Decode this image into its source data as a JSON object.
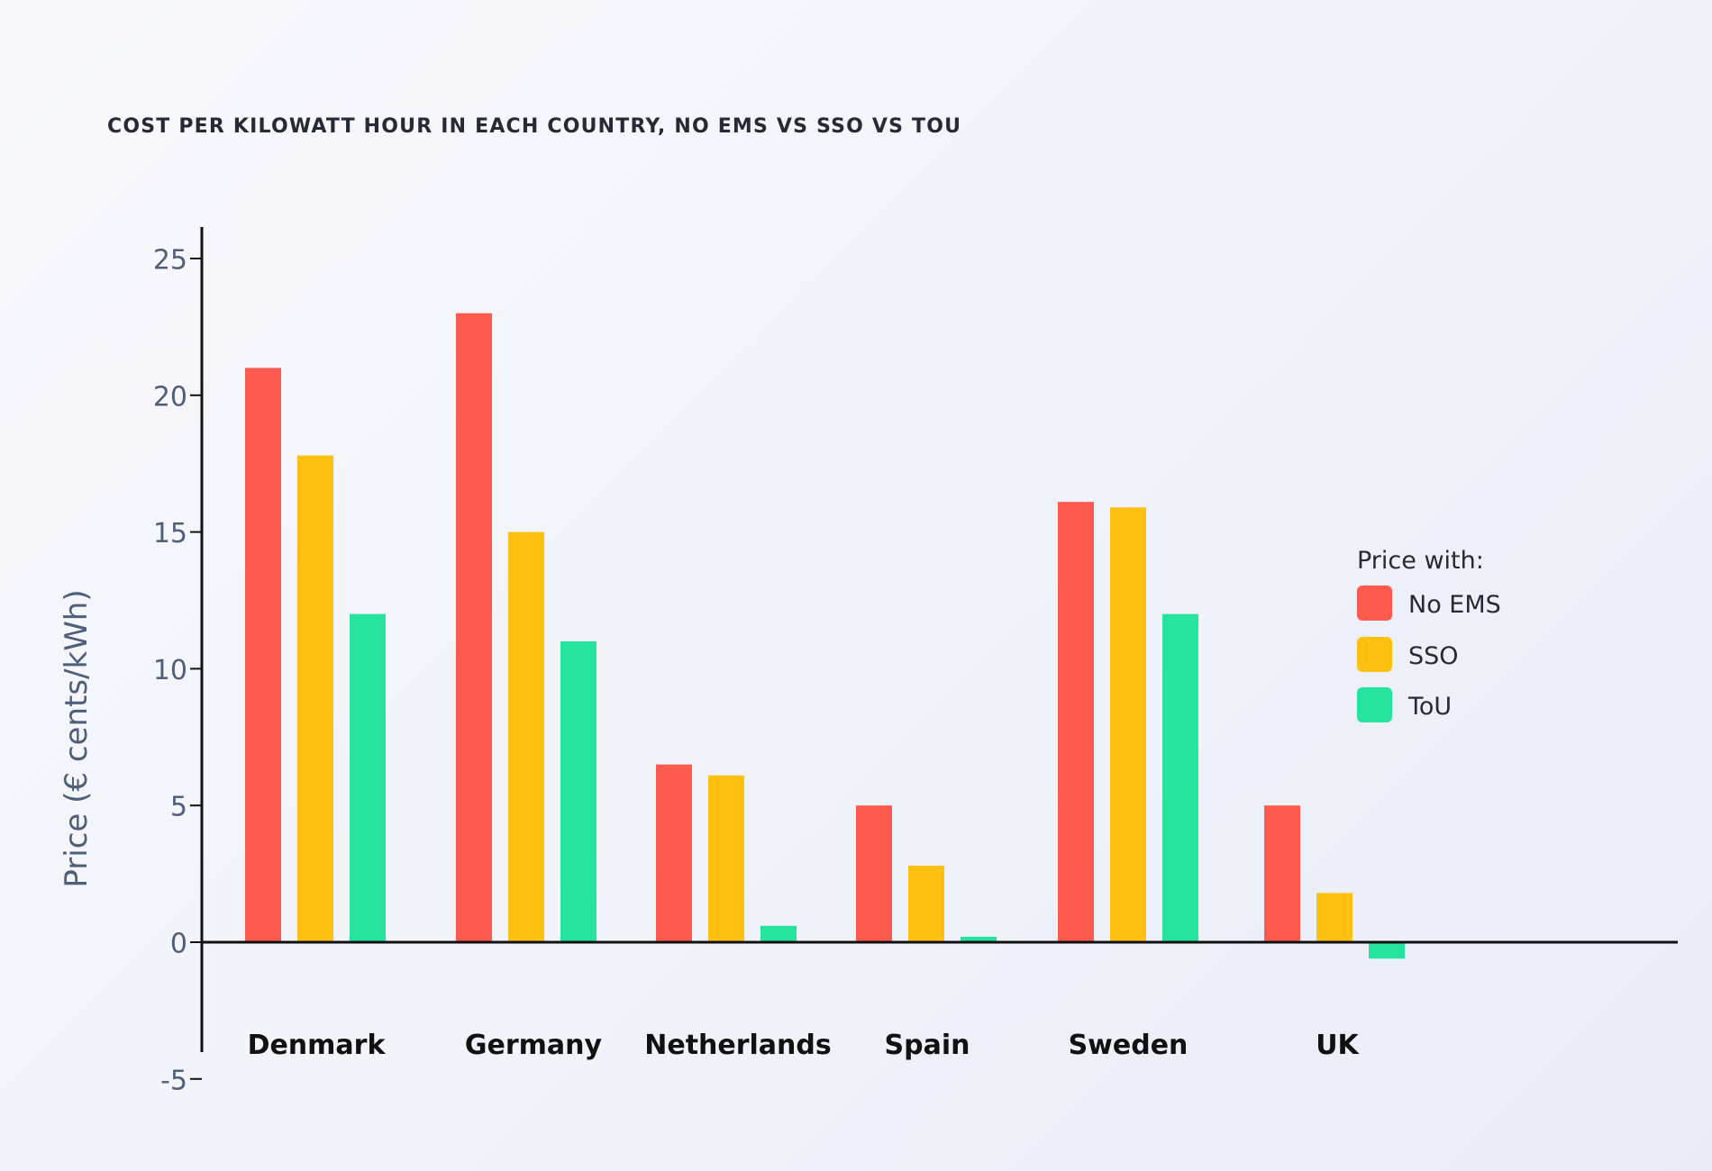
{
  "chart_data": {
    "type": "bar",
    "title": "COST PER KILOWATT HOUR IN EACH COUNTRY, NO EMS VS SSO VS TOU",
    "xlabel": "",
    "ylabel": "Price (€ cents/kWh)",
    "ylim": [
      -5,
      25
    ],
    "yticks": [
      25,
      20,
      15,
      10,
      5,
      0,
      -5
    ],
    "grid": false,
    "categories": [
      "Denmark",
      "Germany",
      "Netherlands",
      "Spain",
      "Sweden",
      "UK"
    ],
    "series": [
      {
        "name": "No EMS",
        "color": "#ff5a4e",
        "values": [
          21,
          23,
          6.5,
          5,
          16.1,
          5
        ]
      },
      {
        "name": "SSO",
        "color": "#ffc012",
        "values": [
          17.8,
          15,
          6.1,
          2.8,
          15.9,
          1.8
        ]
      },
      {
        "name": "ToU",
        "color": "#26e39d",
        "values": [
          12,
          11,
          0.6,
          0.2,
          12,
          -0.6
        ]
      }
    ],
    "legend": {
      "title": "Price with:",
      "position": "right"
    }
  }
}
